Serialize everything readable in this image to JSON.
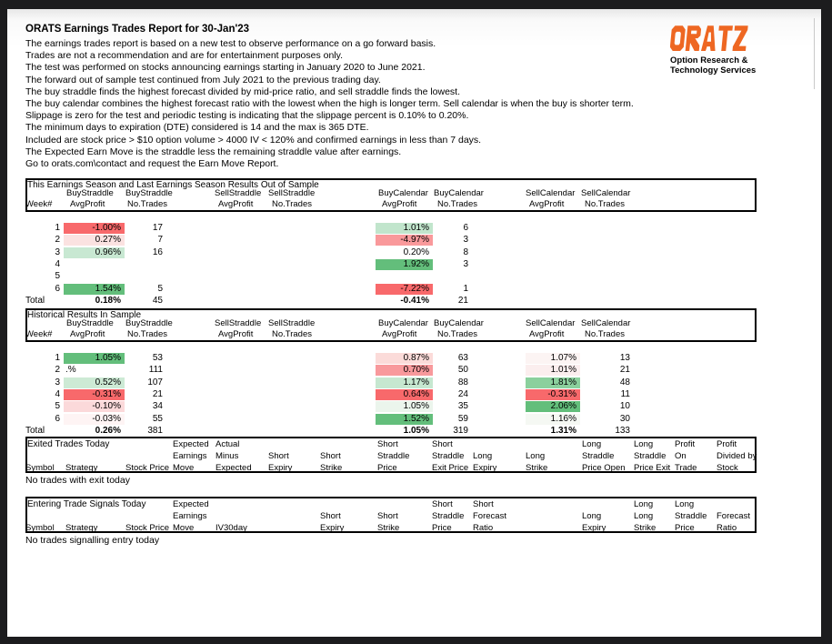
{
  "header": {
    "title": "ORATS Earnings Trades Report for 30-Jan'23",
    "intro_lines": [
      "The earnings trades report is based on a new test to observe performance on a go forward basis.",
      "Trades are not a recommendation and are for entertainment purposes only.",
      "The test was performed on stocks announcing earnings starting in January 2020 to June 2021.",
      "The forward out of sample test continued from July 2021 to the previous trading day.",
      "The buy straddle finds the highest forecast divided by mid-price ratio, and sell straddle finds the lowest.",
      "The buy calendar combines the highest forecast ratio with the lowest when the high is longer term. Sell calendar is when the buy is shorter term.",
      "Slippage is zero for the test and periodic testing is indicating that the slippage percent is 0.10% to 0.20%.",
      "The minimum days to expiration (DTE) considered is 14 and the max is 365 DTE.",
      "Included are stock price > $10 option volume > 4000 IV < 120% and confirmed earnings in less than 7 days.",
      "The Expected Earn Move is the straddle less the remaining straddle value after earnings.",
      "Go to orats.com\\contact and request the Earn Move Report."
    ],
    "logo": {
      "brand": "ORATS",
      "tagline1": "Option Research &",
      "tagline2": "Technology Services",
      "brand_color": "#EE6722"
    }
  },
  "results_header_groups": [
    "BuyStraddle",
    "BuyStraddle",
    "SellStraddle",
    "SellStraddle",
    "BuyCalendar",
    "BuyCalendar",
    "SellCalendar",
    "SellCalendar"
  ],
  "results_header_subs": [
    "Week#",
    "AvgProfit",
    "No.Trades",
    "AvgProfit",
    "No.Trades",
    "AvgProfit",
    "No.Trades",
    "AvgProfit",
    "No.Trades"
  ],
  "out_of_sample": {
    "title": "This Earnings Season and Last Earnings Season Results Out of Sample",
    "rows": [
      {
        "week": "1",
        "bs_avg": "-1.00%",
        "bs_bg": "#F8696B",
        "bs_tr": "17",
        "bc_avg": "1.01%",
        "bc_bg": "#C1E5CC",
        "bc_tr": "6"
      },
      {
        "week": "2",
        "bs_avg": "0.27%",
        "bs_bg": "#FBE2E1",
        "bs_tr": "7",
        "bc_avg": "-4.97%",
        "bc_bg": "#F9999B",
        "bc_tr": "3"
      },
      {
        "week": "3",
        "bs_avg": "0.96%",
        "bs_bg": "#C8E8D2",
        "bs_tr": "16",
        "bc_avg": "0.20%",
        "bc_tr": "8"
      },
      {
        "week": "4",
        "bc_avg": "1.92%",
        "bc_bg": "#63BE7B",
        "bc_tr": "3"
      },
      {
        "week": "5"
      },
      {
        "week": "6",
        "bs_avg": "1.54%",
        "bs_bg": "#63BE7B",
        "bs_tr": "5",
        "bc_avg": "-7.22%",
        "bc_bg": "#F8696B",
        "bc_tr": "1"
      }
    ],
    "total": {
      "week": "Total",
      "bs_avg": "0.18%",
      "bs_tr": "45",
      "bc_avg": "-0.41%",
      "bc_tr": "21"
    }
  },
  "in_sample": {
    "title": "Historical Results In Sample",
    "rows": [
      {
        "week": "1",
        "bs_avg": "1.05%",
        "bs_bg": "#63BE7B",
        "bs_tr": "53",
        "bc_avg": "0.87%",
        "bc_bg": "#FBDBD9",
        "bc_tr": "63",
        "sc_avg": "1.07%",
        "sc_bg": "#FCF4F3",
        "sc_tr": "13"
      },
      {
        "week": "2",
        "bs_avg": ".%",
        "bs_align": "left",
        "bs_tr": "111",
        "bc_avg": "0.70%",
        "bc_bg": "#F8999C",
        "bc_tr": "50",
        "sc_avg": "1.01%",
        "sc_bg": "#FBEEEE",
        "sc_tr": "21"
      },
      {
        "week": "3",
        "bs_avg": "0.52%",
        "bs_bg": "#CDEAD5",
        "bs_tr": "107",
        "bc_avg": "1.17%",
        "bc_bg": "#C6E7D0",
        "bc_tr": "88",
        "sc_avg": "1.81%",
        "sc_bg": "#8BD09D",
        "sc_tr": "48"
      },
      {
        "week": "4",
        "bs_avg": "-0.31%",
        "bs_bg": "#F8696B",
        "bs_tr": "21",
        "bc_avg": "0.64%",
        "bc_bg": "#F8696B",
        "bc_tr": "24",
        "sc_avg": "-0.31%",
        "sc_bg": "#F8696B",
        "sc_tr": "11"
      },
      {
        "week": "5",
        "bs_avg": "-0.10%",
        "bs_bg": "#FBD9DA",
        "bs_tr": "34",
        "bc_avg": "1.05%",
        "bc_bg": "#EBF5EC",
        "bc_tr": "35",
        "sc_avg": "2.06%",
        "sc_bg": "#63BE7B",
        "sc_tr": "10"
      },
      {
        "week": "6",
        "bs_avg": "-0.03%",
        "bs_bg": "#FEF4F4",
        "bs_tr": "55",
        "bc_avg": "1.52%",
        "bc_bg": "#63BE7B",
        "bc_tr": "59",
        "sc_avg": "1.16%",
        "sc_bg": "#F5F8F3",
        "sc_tr": "30"
      }
    ],
    "total": {
      "week": "Total",
      "bs_avg": "0.26%",
      "bs_tr": "381",
      "bc_avg": "1.05%",
      "bc_tr": "319",
      "sc_avg": "1.31%",
      "sc_tr": "133"
    }
  },
  "exited": {
    "title": "Exited Trades Today",
    "columns": [
      {
        "lines": [
          "",
          "",
          "Symbol"
        ]
      },
      {
        "lines": [
          "",
          "",
          "Strategy"
        ]
      },
      {
        "lines": [
          "",
          "",
          "Stock Price"
        ]
      },
      {
        "lines": [
          "Expected",
          "Earnings",
          "Move"
        ]
      },
      {
        "lines": [
          "Actual",
          "Minus",
          "Expected"
        ]
      },
      {
        "lines": [
          "",
          "Short",
          "Expiry"
        ]
      },
      {
        "lines": [
          "",
          "Short",
          "Strike"
        ]
      },
      {
        "lines": [
          "Short",
          "Straddle",
          "Price"
        ]
      },
      {
        "lines": [
          "Short",
          "Straddle",
          "Exit Price"
        ]
      },
      {
        "lines": [
          "",
          "Long",
          "Expiry"
        ]
      },
      {
        "lines": [
          "",
          "Long",
          "Strike"
        ]
      },
      {
        "lines": [
          "Long",
          "Straddle",
          "Price Open"
        ]
      },
      {
        "lines": [
          "Long",
          "Straddle",
          "Price Exit"
        ]
      },
      {
        "lines": [
          "Profit",
          "On",
          "Trade"
        ]
      },
      {
        "lines": [
          "Profit",
          "Divided by",
          "Stock"
        ]
      }
    ],
    "empty_message": "No trades with exit today"
  },
  "entering": {
    "title": "Entering Trade Signals Today",
    "columns": [
      {
        "lines": [
          "",
          "",
          "Symbol"
        ]
      },
      {
        "lines": [
          "",
          "",
          "Strategy"
        ]
      },
      {
        "lines": [
          "",
          "",
          "Stock Price"
        ]
      },
      {
        "lines": [
          "Expected",
          "Earnings",
          "Move"
        ]
      },
      {
        "lines": [
          "",
          "",
          "IV30day"
        ]
      },
      {
        "lines": [
          "",
          "Short",
          "Expiry"
        ]
      },
      {
        "lines": [
          "",
          "Short",
          "Strike"
        ]
      },
      {
        "lines": [
          "Short",
          "Straddle",
          "Price"
        ]
      },
      {
        "lines": [
          "Short",
          "Forecast",
          "Ratio"
        ]
      },
      {
        "lines": [
          "",
          "Long",
          "Expiry"
        ]
      },
      {
        "lines": [
          "Long",
          "Long",
          "Strike"
        ]
      },
      {
        "lines": [
          "Long",
          "Straddle",
          "Price"
        ]
      },
      {
        "lines": [
          "",
          "Forecast",
          "Ratio"
        ]
      }
    ],
    "empty_message": "No trades signalling entry today"
  }
}
